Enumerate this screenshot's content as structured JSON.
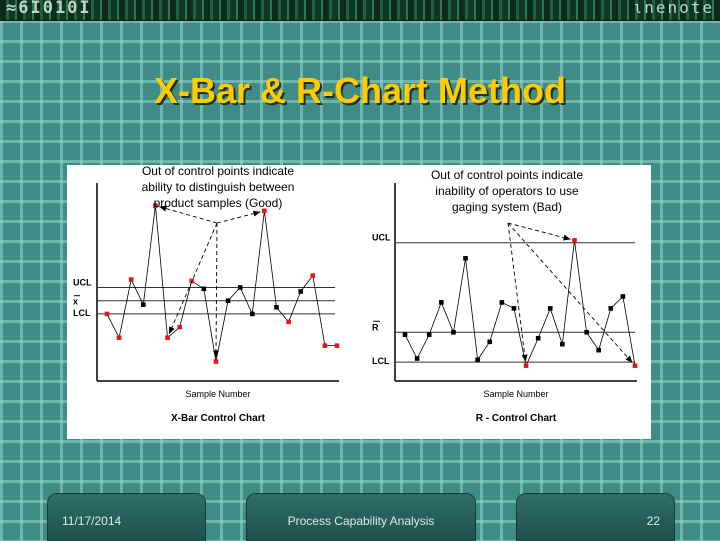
{
  "banner": {
    "left_text": "≈6Ι010Ι",
    "right_text": "ιnenote"
  },
  "slide": {
    "title": "X-Bar & R-Chart Method"
  },
  "chart_data": [
    {
      "type": "line",
      "name": "X-Bar Control Chart",
      "title": "X-Bar Control Chart",
      "xlabel": "Sample Number",
      "annotation": [
        "Out of control points indicate",
        "ability to distinguish between",
        "product samples (Good)"
      ],
      "limits": {
        "ucl_label": "UCL",
        "center_label": "x",
        "lcl_label": "LCL",
        "ucl": 5,
        "center": 4,
        "lcl": 3
      },
      "ylim": [
        -2,
        12
      ],
      "x": [
        1,
        2,
        3,
        4,
        5,
        6,
        7,
        8,
        9,
        10,
        11,
        12,
        13,
        14,
        15,
        16,
        17,
        18,
        19,
        20
      ],
      "values": [
        3.0,
        1.2,
        5.6,
        3.7,
        11.2,
        1.2,
        2.0,
        5.5,
        4.9,
        -0.6,
        4.0,
        5.0,
        3.0,
        10.8,
        3.5,
        2.4,
        4.7,
        5.9,
        0.6,
        0.6
      ],
      "out_of_control": [
        true,
        true,
        true,
        false,
        true,
        true,
        true,
        true,
        false,
        true,
        false,
        false,
        false,
        true,
        false,
        true,
        false,
        true,
        true,
        true
      ],
      "arrows_to": [
        5,
        6,
        10,
        14
      ]
    },
    {
      "type": "line",
      "name": "R -  Control Chart",
      "title": "R -  Control Chart",
      "xlabel": "Sample Number",
      "annotation": [
        "Out of control points indicate",
        "inability of operators to use",
        "gaging system (Bad)"
      ],
      "limits": {
        "ucl_label": "UCL",
        "center_label": "R",
        "lcl_label": "LCL",
        "ucl": 10,
        "center": 2.5,
        "lcl": 0
      },
      "ylim": [
        -1.5,
        14
      ],
      "x": [
        1,
        2,
        3,
        4,
        5,
        6,
        7,
        8,
        9,
        10,
        11,
        12,
        13,
        14,
        15,
        16,
        17,
        18,
        19,
        20
      ],
      "values": [
        2.3,
        0.3,
        2.3,
        5.0,
        2.5,
        8.7,
        0.2,
        1.7,
        5.0,
        4.5,
        -0.3,
        2.0,
        4.5,
        1.5,
        10.2,
        2.5,
        1.0,
        4.5,
        5.5,
        -0.3
      ],
      "out_of_control": [
        false,
        false,
        false,
        false,
        false,
        false,
        false,
        false,
        false,
        false,
        true,
        false,
        false,
        false,
        true,
        false,
        false,
        false,
        false,
        true
      ],
      "arrows_to": [
        11,
        15,
        20
      ]
    }
  ],
  "footer": {
    "date": "11/17/2014",
    "title": "Process Capability Analysis",
    "page": "22"
  }
}
